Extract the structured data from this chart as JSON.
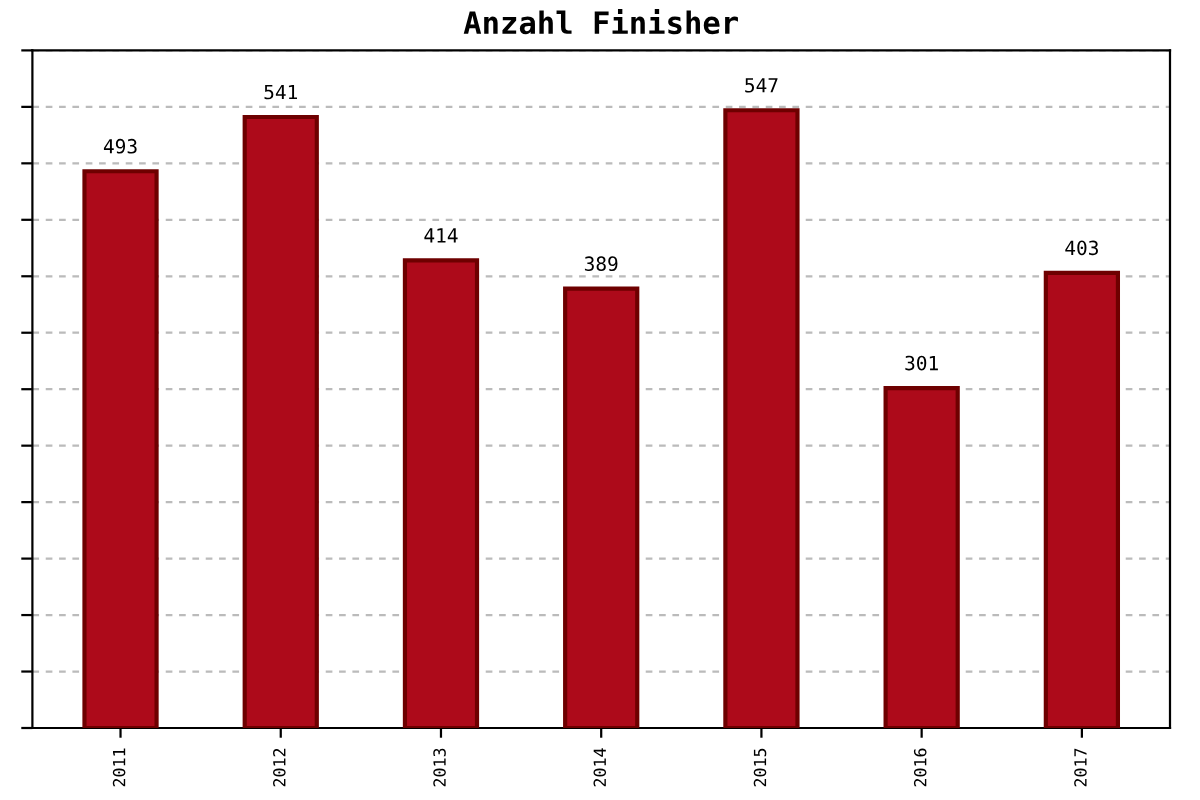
{
  "chart_data": {
    "type": "bar",
    "title": "Anzahl Finisher",
    "categories": [
      "2011",
      "2012",
      "2013",
      "2014",
      "2015",
      "2016",
      "2017"
    ],
    "values": [
      493,
      541,
      414,
      389,
      547,
      301,
      403
    ],
    "color": "#ad0a1a",
    "data_labels": true,
    "ylim": [
      0,
      600
    ],
    "yticks": [
      {
        "value": 0,
        "label": null
      },
      {
        "value": 50,
        "label": null
      },
      {
        "value": 100,
        "label": null
      },
      {
        "value": 150,
        "label": null
      },
      {
        "value": 200,
        "label": null
      },
      {
        "value": 250,
        "label": null
      },
      {
        "value": 300,
        "label": null
      },
      {
        "value": 350,
        "label": null
      },
      {
        "value": 400,
        "label": null
      },
      {
        "value": 450,
        "label": null
      },
      {
        "value": 500,
        "label": null
      },
      {
        "value": 550,
        "label": null
      },
      {
        "value": 600,
        "label": null
      }
    ],
    "grid": "y",
    "tick_labels": "x"
  }
}
